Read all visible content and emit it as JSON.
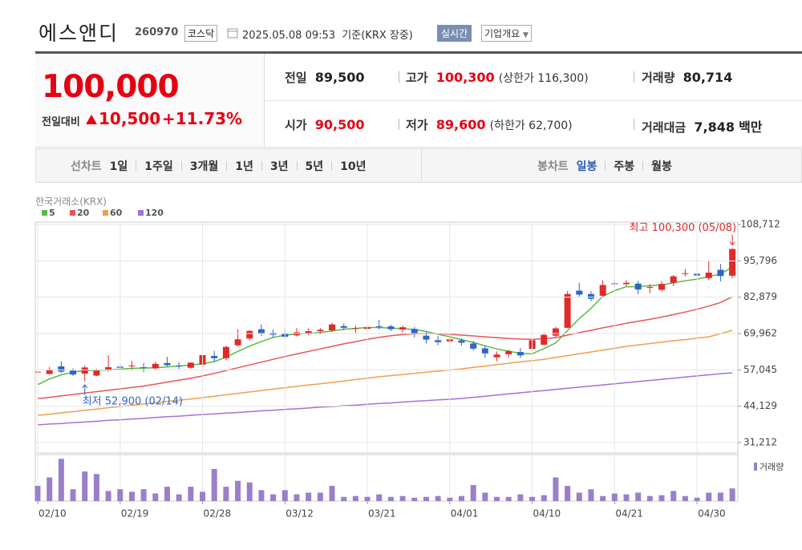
{
  "header": {
    "name": "에스앤디",
    "code": "260970",
    "market": "코스닥",
    "timestamp": "2025.05.08 09:53",
    "basis": "기준(KRX 장중)",
    "realtime": "실시간",
    "company": "기업개요"
  },
  "quote": {
    "price": "100,000",
    "change_label": "전일대비",
    "change": "10,500",
    "change_rate": "+11.73%"
  },
  "info": [
    [
      {
        "label": "전일",
        "value": "89,500"
      },
      {
        "label": "고가",
        "value": "100,300",
        "note": "(상한가 116,300)"
      },
      {
        "label": "거래량",
        "value": "80,714"
      }
    ],
    [
      {
        "label": "시가",
        "value": "90,500"
      },
      {
        "label": "저가",
        "value": "89,600",
        "note": "(하한가 62,700)"
      },
      {
        "label": "거래대금",
        "value": "7,848",
        "unit": "백만"
      }
    ]
  ],
  "tabs": {
    "line_label": "선차트",
    "line_items": [
      "1일",
      "1주일",
      "3개월",
      "1년",
      "3년",
      "5년",
      "10년"
    ],
    "candle_label": "봉차트",
    "candle_items": [
      "일봉",
      "주봉",
      "월봉"
    ]
  },
  "chart_data": {
    "type": "candlestick",
    "source": "한국거래소(KRX)",
    "categories": [
      "02/10",
      null,
      null,
      null,
      null,
      null,
      null,
      "02/19",
      null,
      null,
      null,
      null,
      null,
      null,
      "02/28",
      null,
      null,
      null,
      null,
      null,
      null,
      "03/12",
      null,
      null,
      null,
      null,
      null,
      null,
      "03/21",
      null,
      null,
      null,
      null,
      null,
      null,
      "04/01",
      null,
      null,
      null,
      null,
      null,
      null,
      "04/10",
      null,
      null,
      null,
      null,
      null,
      null,
      "04/21",
      null,
      null,
      null,
      null,
      null,
      null,
      "04/30",
      null,
      null,
      null
    ],
    "open": [
      56300,
      55600,
      58300,
      56800,
      55700,
      55000,
      57200,
      58200,
      58500,
      58000,
      57600,
      59500,
      58600,
      57800,
      58900,
      62000,
      61200,
      65800,
      68200,
      71500,
      70200,
      69800,
      69300,
      70100,
      70800,
      71100,
      72600,
      71600,
      71600,
      72600,
      72500,
      71400,
      71600,
      69200,
      67600,
      67200,
      67500,
      66400,
      64700,
      61500,
      62600,
      63400,
      64500,
      66000,
      69200,
      72000,
      85200,
      84000,
      83400,
      87800,
      87500,
      87700,
      86400,
      85500,
      88000,
      91400,
      91200,
      89700,
      92600,
      90500
    ],
    "high": [
      57200,
      58100,
      60100,
      57600,
      58600,
      57400,
      62300,
      59000,
      60200,
      59400,
      60000,
      61700,
      59800,
      59700,
      62900,
      63800,
      65600,
      71500,
      71200,
      73200,
      71400,
      71800,
      71900,
      71800,
      72000,
      73800,
      73500,
      72800,
      73200,
      74800,
      73100,
      72800,
      72300,
      70500,
      69100,
      69500,
      68300,
      67300,
      65500,
      63600,
      64200,
      64800,
      68200,
      70200,
      72400,
      85100,
      88000,
      85000,
      88900,
      88900,
      89000,
      88700,
      87500,
      88600,
      90800,
      92900,
      91800,
      95600,
      94700,
      100300
    ],
    "low": [
      55800,
      55400,
      55900,
      54900,
      52900,
      54800,
      56500,
      57000,
      56800,
      56200,
      57100,
      58300,
      57300,
      57500,
      58500,
      60000,
      60400,
      65400,
      67600,
      69100,
      68400,
      68100,
      68900,
      69300,
      69700,
      70500,
      71200,
      69900,
      70800,
      71400,
      70800,
      70300,
      68600,
      66400,
      65800,
      66600,
      65700,
      63900,
      61300,
      60100,
      61400,
      61300,
      64000,
      65800,
      68600,
      71800,
      83000,
      81500,
      82800,
      86400,
      86800,
      84000,
      84300,
      85000,
      86800,
      90200,
      89800,
      89000,
      88500,
      89600
    ],
    "close": [
      56400,
      57200,
      56400,
      55400,
      57900,
      56800,
      58000,
      57800,
      58600,
      57900,
      59200,
      58700,
      58400,
      59600,
      62300,
      61200,
      65200,
      67900,
      70900,
      70100,
      69500,
      68800,
      70400,
      70800,
      71300,
      73200,
      72000,
      71900,
      72200,
      72300,
      71500,
      72200,
      69800,
      67800,
      66900,
      67900,
      66700,
      64600,
      62900,
      62500,
      63700,
      62200,
      67600,
      69500,
      71800,
      84000,
      83800,
      82300,
      87200,
      87600,
      88000,
      85600,
      86500,
      87600,
      90300,
      91400,
      90600,
      91600,
      90400,
      100000
    ],
    "up_color": "#e12a2a",
    "down_color": "#2f64c8",
    "series": [
      {
        "name": "5",
        "color": "#5cb84a",
        "values": [
          51800,
          53800,
          55300,
          56200,
          56800,
          56900,
          57000,
          57300,
          57600,
          57700,
          57800,
          58100,
          58400,
          58800,
          59200,
          60000,
          61600,
          63600,
          65500,
          67100,
          68600,
          69400,
          69800,
          70000,
          70300,
          70900,
          71500,
          71800,
          72100,
          72100,
          71900,
          71700,
          71400,
          70700,
          69700,
          68800,
          67800,
          66800,
          65600,
          64500,
          63700,
          62900,
          62800,
          64600,
          66600,
          71000,
          75300,
          78900,
          83200,
          85200,
          86600,
          86600,
          87000,
          87200,
          88000,
          88700,
          89300,
          90200,
          91100,
          93600
        ]
      },
      {
        "name": "20",
        "color": "#e8545a",
        "values": [
          46800,
          47300,
          47800,
          48300,
          48800,
          49300,
          49800,
          50300,
          50800,
          51300,
          52000,
          52700,
          53400,
          54100,
          54900,
          55800,
          56800,
          57800,
          58800,
          59800,
          60800,
          61800,
          62700,
          63600,
          64500,
          65400,
          66300,
          67100,
          67900,
          68600,
          69200,
          69600,
          69900,
          70000,
          69900,
          69700,
          69400,
          69100,
          68800,
          68500,
          68200,
          68000,
          67900,
          68100,
          68500,
          69400,
          70300,
          71100,
          72000,
          72800,
          73600,
          74300,
          75000,
          75800,
          76700,
          77600,
          78600,
          79700,
          81000,
          83000
        ]
      },
      {
        "name": "60",
        "color": "#f0a04b",
        "values": [
          40900,
          41300,
          41800,
          42200,
          42700,
          43100,
          43600,
          44000,
          44500,
          44900,
          45400,
          45800,
          46300,
          46700,
          47200,
          47700,
          48200,
          48700,
          49200,
          49700,
          50200,
          50700,
          51200,
          51700,
          52100,
          52600,
          53100,
          53600,
          54100,
          54600,
          55000,
          55400,
          55800,
          56200,
          56600,
          57000,
          57400,
          57900,
          58400,
          58900,
          59400,
          59900,
          60300,
          60800,
          61500,
          62100,
          62800,
          63400,
          64100,
          64700,
          65400,
          65900,
          66400,
          66900,
          67400,
          67800,
          68300,
          68800,
          69900,
          71100
        ]
      },
      {
        "name": "120",
        "color": "#a471d6",
        "values": [
          37500,
          37800,
          38000,
          38300,
          38500,
          38800,
          39100,
          39300,
          39600,
          39800,
          40100,
          40400,
          40600,
          40900,
          41200,
          41400,
          41700,
          41900,
          42200,
          42500,
          42700,
          43000,
          43200,
          43500,
          43800,
          44000,
          44300,
          44500,
          44800,
          45100,
          45300,
          45600,
          45900,
          46100,
          46400,
          46600,
          46900,
          47300,
          47700,
          48100,
          48500,
          48900,
          49300,
          49700,
          50100,
          50500,
          50900,
          51300,
          51700,
          52100,
          52500,
          52900,
          53300,
          53700,
          54100,
          54500,
          54900,
          55300,
          55700,
          56000
        ]
      }
    ],
    "ylim": [
      27515,
      109567
    ],
    "yticks": [
      {
        "value": 31212,
        "label": "31,212"
      },
      {
        "value": 44129,
        "label": "44,129"
      },
      {
        "value": 57045,
        "label": "57,045"
      },
      {
        "value": 69962,
        "label": "69,962"
      },
      {
        "value": 82879,
        "label": "82,879"
      },
      {
        "value": 95796,
        "label": "95,796"
      },
      {
        "value": 108712,
        "label": "108,712"
      }
    ],
    "grid": true,
    "annotations": [
      {
        "label": "최고 100,300 (05/08)",
        "value": 100300,
        "color": "#e12a2a"
      },
      {
        "label": "최저 52,900 (02/14)",
        "value": 52900,
        "color": "#2f64c8"
      }
    ],
    "volume": {
      "name": "거래량",
      "color": "#9b7fc8",
      "ylim": [
        0,
        55
      ],
      "values": [
        18,
        28,
        50,
        14,
        35,
        32,
        12,
        14,
        11,
        14,
        9,
        17,
        8,
        17,
        11,
        38,
        17,
        24,
        22,
        13,
        8,
        13,
        8,
        10,
        10,
        18,
        5,
        6,
        5,
        8,
        5,
        6,
        4,
        5,
        6,
        4,
        6,
        19,
        10,
        5,
        5,
        8,
        5,
        7,
        28,
        18,
        10,
        14,
        6,
        9,
        8,
        10,
        6,
        7,
        12,
        6,
        4,
        10,
        10,
        15
      ]
    }
  }
}
